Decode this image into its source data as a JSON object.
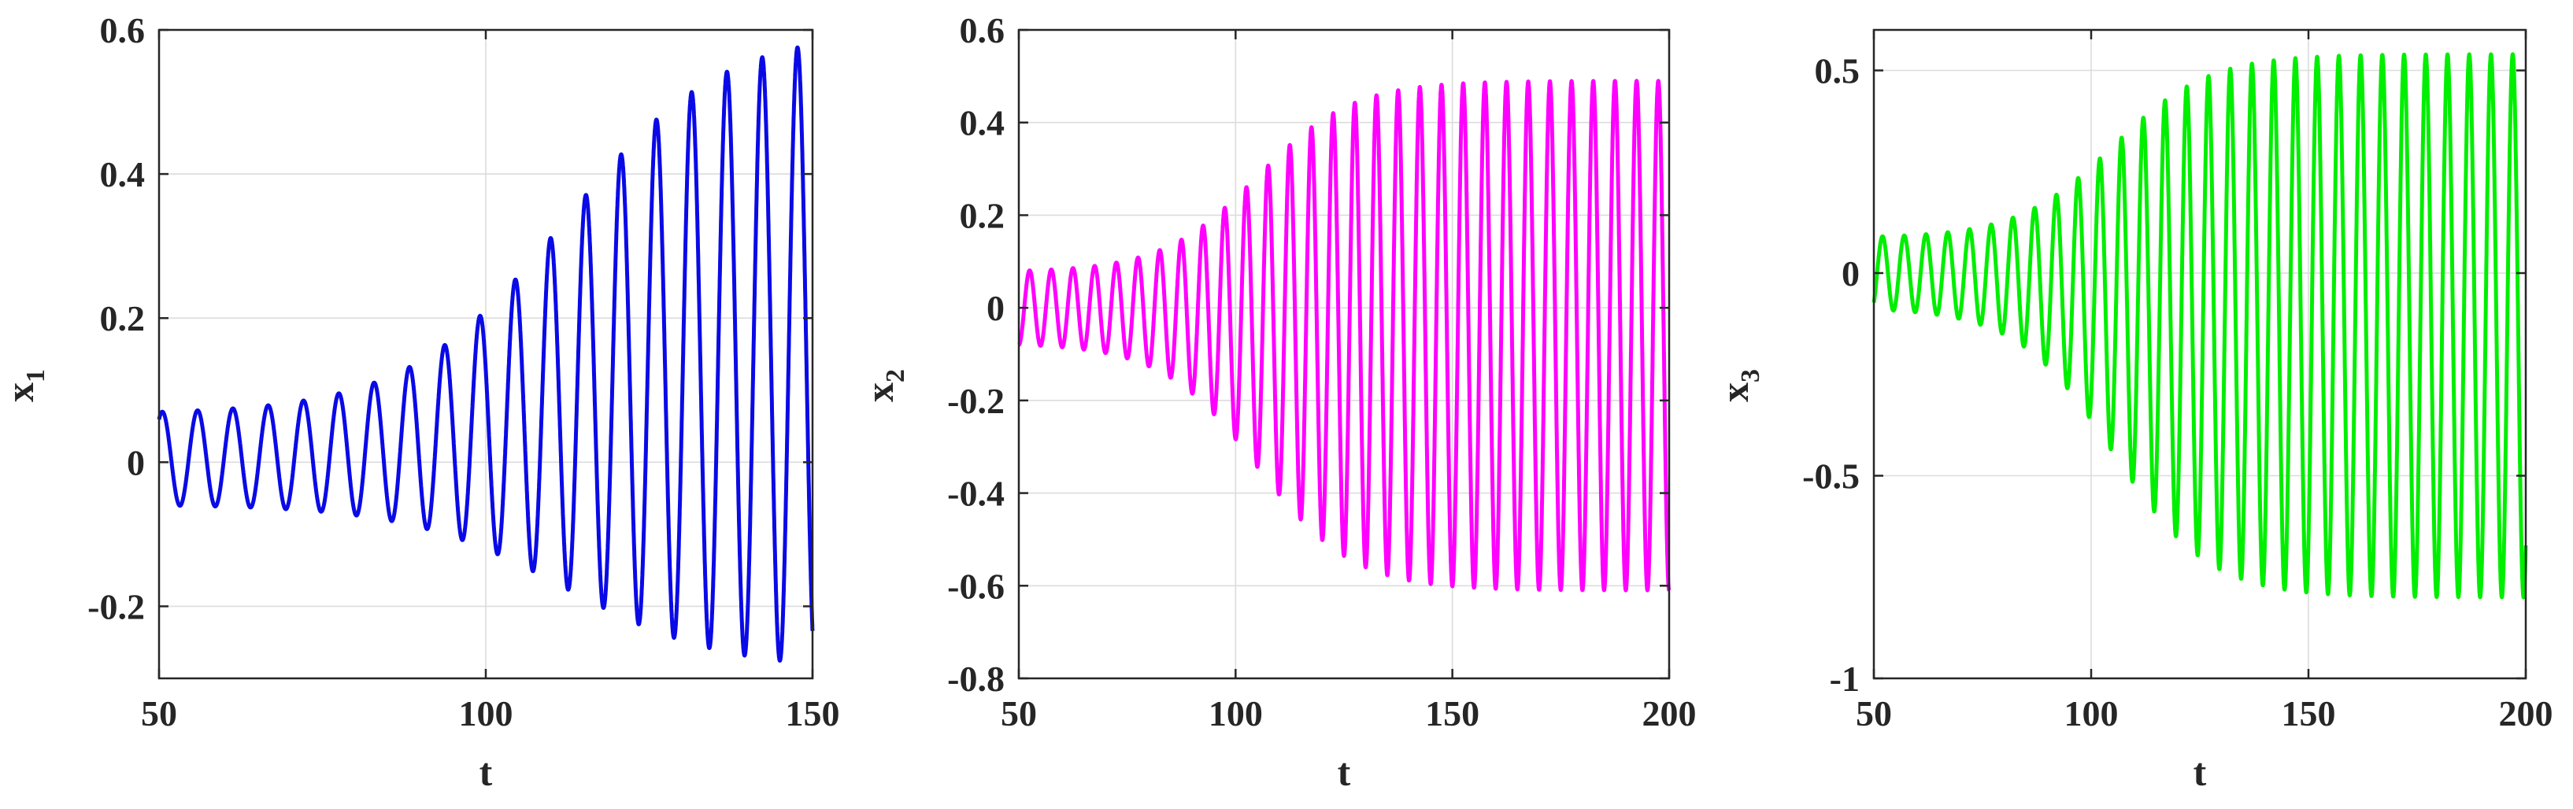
{
  "chart_data": [
    {
      "type": "line",
      "xlabel": "t",
      "ylabel": "x",
      "ylabel_sub": "1",
      "xlim": [
        50,
        150
      ],
      "ylim": [
        -0.3,
        0.6
      ],
      "xticks": [
        50,
        100,
        150
      ],
      "yticks": [
        -0.2,
        0,
        0.2,
        0.4,
        0.6
      ],
      "xtick_labels": [
        "50",
        "100",
        "150"
      ],
      "ytick_labels": [
        "-0.2",
        "0",
        "0.2",
        "0.4",
        "0.6"
      ],
      "grid": true,
      "color": "#0a0ae6",
      "oscillation": {
        "period": 5.4,
        "phase_t": 50.5,
        "center_start": 0.005,
        "center_end": 0.15,
        "amp_start": 0.065,
        "amp_end": 0.43,
        "growth_midpoint_t": 112,
        "growth_width": 12
      },
      "series": [
        {
          "x": [
            50,
            60,
            70,
            80,
            90,
            100,
            110,
            120,
            130,
            140,
            148
          ],
          "y_max": [
            0.07,
            0.085,
            0.11,
            0.15,
            0.22,
            0.3,
            0.4,
            0.48,
            0.54,
            0.57,
            0.585
          ],
          "y_min": [
            -0.06,
            -0.07,
            -0.09,
            -0.12,
            -0.16,
            -0.2,
            -0.24,
            -0.27,
            -0.27,
            -0.28,
            -0.28
          ]
        }
      ]
    },
    {
      "type": "line",
      "xlabel": "t",
      "ylabel": "x",
      "ylabel_sub": "2",
      "xlim": [
        50,
        200
      ],
      "ylim": [
        -0.8,
        0.6
      ],
      "xticks": [
        50,
        100,
        150,
        200
      ],
      "yticks": [
        -0.8,
        -0.6,
        -0.4,
        -0.2,
        0,
        0.2,
        0.4,
        0.6
      ],
      "xtick_labels": [
        "50",
        "100",
        "150",
        "200"
      ],
      "ytick_labels": [
        "-0.8",
        "-0.6",
        "-0.4",
        "-0.2",
        "0",
        "0.2",
        "0.4",
        "0.6"
      ],
      "grid": true,
      "color": "#ff00ff",
      "oscillation": {
        "period": 5.0,
        "phase_t": 52.5,
        "center_start": 0.0,
        "center_end": -0.06,
        "amp_start": 0.08,
        "amp_end": 0.55,
        "growth_midpoint_t": 105,
        "growth_width": 11
      },
      "series": [
        {
          "x": [
            50,
            75,
            100,
            125,
            150,
            175,
            200
          ],
          "y_max": [
            0.08,
            0.13,
            0.31,
            0.45,
            0.47,
            0.48,
            0.49
          ],
          "y_min": [
            -0.08,
            -0.15,
            -0.33,
            -0.55,
            -0.6,
            -0.61,
            -0.61
          ]
        }
      ]
    },
    {
      "type": "line",
      "xlabel": "t",
      "ylabel": "x",
      "ylabel_sub": "3",
      "xlim": [
        50,
        200
      ],
      "ylim": [
        -1,
        0.6
      ],
      "xticks": [
        50,
        100,
        150,
        200
      ],
      "yticks": [
        -1,
        -0.5,
        0,
        0.5
      ],
      "xtick_labels": [
        "50",
        "100",
        "150",
        "200"
      ],
      "ytick_labels": [
        "-1",
        "-0.5",
        "0",
        "0.5"
      ],
      "grid": true,
      "color": "#00ee00",
      "oscillation": {
        "period": 5.0,
        "phase_t": 52.0,
        "center_start": 0.0,
        "center_end": -0.13,
        "amp_start": 0.09,
        "amp_end": 0.67,
        "growth_midpoint_t": 105,
        "growth_width": 11
      },
      "series": [
        {
          "x": [
            50,
            75,
            100,
            125,
            150,
            175,
            200
          ],
          "y_max": [
            0.09,
            0.16,
            0.34,
            0.48,
            0.52,
            0.54,
            0.55
          ],
          "y_min": [
            -0.09,
            -0.18,
            -0.38,
            -0.7,
            -0.78,
            -0.8,
            -0.8
          ]
        }
      ]
    }
  ]
}
